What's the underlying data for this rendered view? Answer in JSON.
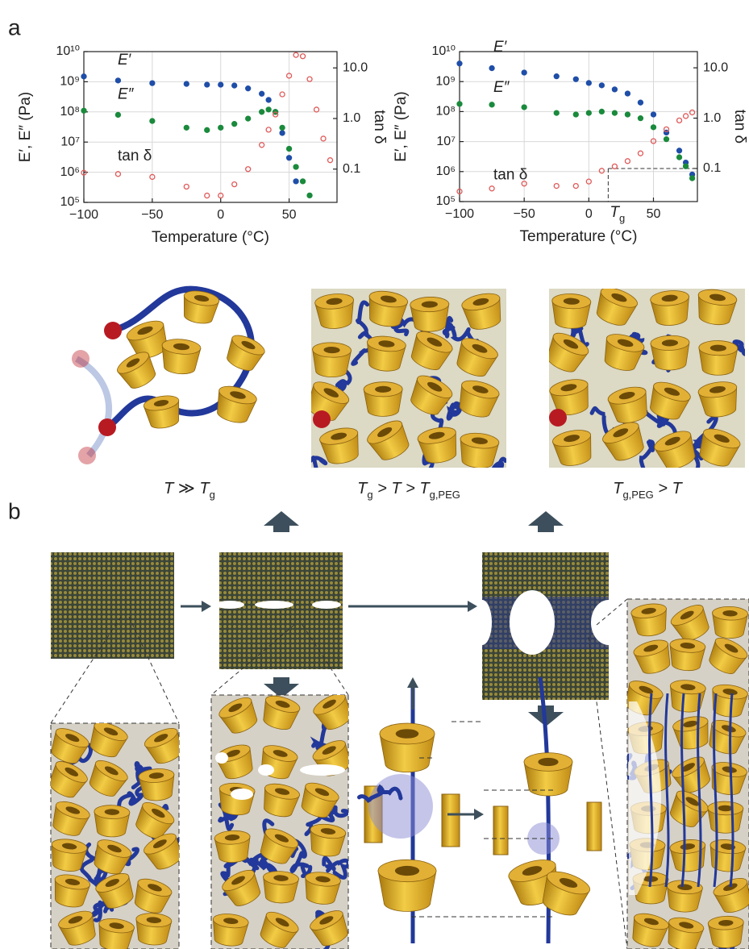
{
  "panels": {
    "a": "a",
    "b": "b"
  },
  "captions": [
    [
      "T ≫ T",
      "g"
    ],
    [
      "T",
      "g",
      " > T > T",
      "g,PEG"
    ],
    [
      "T",
      "g,PEG",
      " > T"
    ]
  ],
  "chart_data": [
    {
      "type": "scatter",
      "xlabel": "Temperature (°C)",
      "ylabel": "E′, E″ (Pa)",
      "y2label": "tan δ",
      "log": true,
      "grid": true,
      "xlim": [
        -100,
        85
      ],
      "xticks": [
        {
          "value": -100,
          "label": "−100"
        },
        {
          "value": -50,
          "label": "−50"
        },
        0,
        50
      ],
      "ylim": [
        100000,
        10000000000
      ],
      "yticks": [
        {
          "value": 100000,
          "label": "10⁵"
        },
        {
          "value": 1000000,
          "label": "10⁶"
        },
        {
          "value": 10000000,
          "label": "10⁷"
        },
        {
          "value": 100000000,
          "label": "10⁸"
        },
        {
          "value": 1000000000,
          "label": "10⁹"
        },
        {
          "value": 10000000000,
          "label": "10¹⁰"
        }
      ],
      "y2lim": [
        0.022,
        21
      ],
      "y2ticks": [
        0.1,
        {
          "value": 1,
          "label": "1.0"
        },
        {
          "value": 10,
          "label": "10.0"
        }
      ],
      "x": [
        -100,
        -75,
        -50,
        -25,
        -10,
        0,
        10,
        20,
        30,
        35,
        40,
        45,
        50,
        55,
        60,
        65,
        70,
        75,
        80
      ],
      "series": [
        {
          "name": "E′",
          "color": "#1f4ea8",
          "marker": "filled",
          "values": [
            1500000000,
            1100000000,
            900000000,
            850000000,
            800000000,
            800000000,
            750000000,
            600000000,
            400000000,
            250000000,
            100000000,
            20000000,
            3000000,
            500000,
            null,
            null,
            null,
            null,
            null
          ]
        },
        {
          "name": "E″",
          "color": "#1a8a3c",
          "marker": "filled",
          "values": [
            110000000,
            80000000,
            50000000,
            30000000,
            25000000,
            30000000,
            40000000,
            60000000,
            100000000,
            120000000,
            100000000,
            30000000,
            6000000,
            1500000,
            500000,
            170000,
            null,
            null,
            null
          ]
        },
        {
          "name": "tan δ",
          "color": "#e05a5a",
          "marker": "open",
          "axis": "y2",
          "values": [
            0.085,
            0.08,
            0.07,
            0.045,
            0.03,
            0.03,
            0.05,
            0.1,
            0.3,
            0.6,
            1.2,
            3,
            7,
            18,
            17,
            6,
            1.5,
            0.4,
            0.15
          ]
        }
      ]
    },
    {
      "type": "scatter",
      "xlabel": "Temperature (°C)",
      "ylabel": "E′, E″ (Pa)",
      "y2label": "tan δ",
      "log": true,
      "grid": true,
      "xlim": [
        -100,
        84
      ],
      "xticks": [
        {
          "value": -100,
          "label": "−100"
        },
        {
          "value": -50,
          "label": "−50"
        },
        0,
        50
      ],
      "ylim": [
        100000,
        10000000000
      ],
      "yticks": [
        {
          "value": 100000,
          "label": "10⁵"
        },
        {
          "value": 1000000,
          "label": "10⁶"
        },
        {
          "value": 10000000,
          "label": "10⁷"
        },
        {
          "value": 100000000,
          "label": "10⁸"
        },
        {
          "value": 1000000000,
          "label": "10⁹"
        },
        {
          "value": 10000000000,
          "label": "10¹⁰"
        }
      ],
      "y2lim": [
        0.022,
        21
      ],
      "y2ticks": [
        0.1,
        {
          "value": 1,
          "label": "1.0"
        },
        {
          "value": 10,
          "label": "10.0"
        }
      ],
      "x": [
        -100,
        -75,
        -50,
        -25,
        -10,
        0,
        10,
        20,
        30,
        40,
        50,
        60,
        70,
        75,
        80
      ],
      "series": [
        {
          "name": "E′",
          "color": "#1f4ea8",
          "marker": "filled",
          "values": [
            4000000000,
            2800000000,
            2000000000,
            1500000000,
            1200000000,
            900000000,
            750000000,
            550000000,
            400000000,
            200000000,
            80000000,
            20000000,
            5000000,
            2000000,
            800000
          ]
        },
        {
          "name": "E″",
          "color": "#1a8a3c",
          "marker": "filled",
          "values": [
            180000000,
            170000000,
            140000000,
            90000000,
            80000000,
            90000000,
            100000000,
            90000000,
            80000000,
            60000000,
            30000000,
            12000000,
            3000000,
            1500000,
            600000
          ]
        },
        {
          "name": "tan δ",
          "color": "#e05a5a",
          "marker": "open",
          "axis": "y2",
          "values": [
            0.035,
            0.04,
            0.05,
            0.045,
            0.045,
            0.055,
            0.09,
            0.11,
            0.14,
            0.2,
            0.35,
            0.6,
            0.9,
            1.1,
            1.3
          ]
        }
      ],
      "annotation": {
        "text": [
          "T",
          "g"
        ],
        "x": 15,
        "y2": 0.1
      }
    }
  ]
}
